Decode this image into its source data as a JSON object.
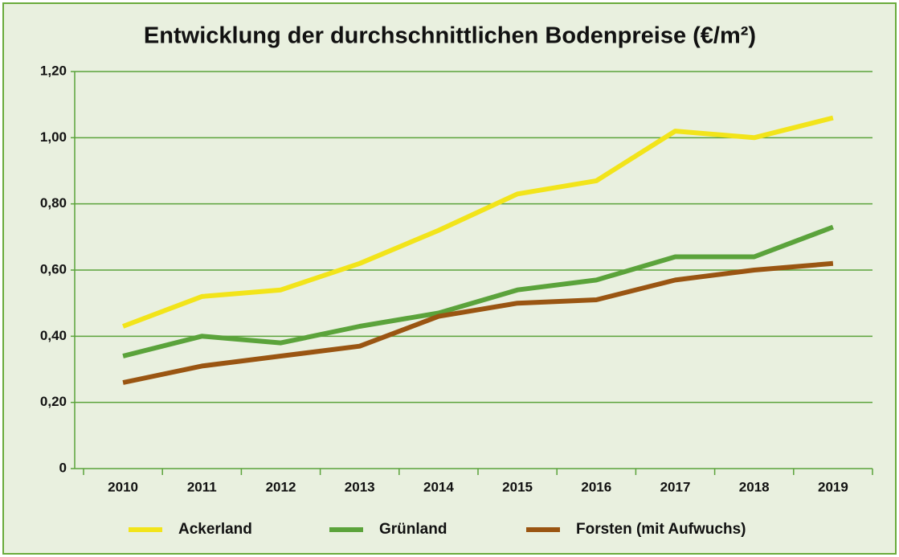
{
  "chart_data": {
    "type": "line",
    "title": "Entwicklung der durchschnittlichen Bodenpreise (€/m²)",
    "categories": [
      "2010",
      "2011",
      "2012",
      "2013",
      "2014",
      "2015",
      "2016",
      "2017",
      "2018",
      "2019"
    ],
    "series": [
      {
        "name": "Ackerland",
        "color": "#f2e41a",
        "values": [
          0.43,
          0.52,
          0.54,
          0.62,
          0.72,
          0.83,
          0.87,
          1.02,
          1.0,
          1.06
        ]
      },
      {
        "name": "Grünland",
        "color": "#5ba33b",
        "values": [
          0.34,
          0.4,
          0.38,
          0.43,
          0.47,
          0.54,
          0.57,
          0.64,
          0.64,
          0.73
        ]
      },
      {
        "name": "Forsten (mit Aufwuchs)",
        "color": "#9a5512",
        "values": [
          0.26,
          0.31,
          0.34,
          0.37,
          0.46,
          0.5,
          0.51,
          0.57,
          0.6,
          0.62
        ]
      }
    ],
    "ylim": [
      0,
      1.2
    ],
    "yticks": [
      0,
      {
        "value": 0.2,
        "label": "0,20"
      },
      {
        "value": 0.4,
        "label": "0,40"
      },
      {
        "value": 0.6,
        "label": "0,60"
      },
      {
        "value": 0.8,
        "label": "0,80"
      },
      {
        "value": 1.0,
        "label": "1,00"
      },
      {
        "value": 1.2,
        "label": "1,20"
      }
    ],
    "grid": true
  }
}
